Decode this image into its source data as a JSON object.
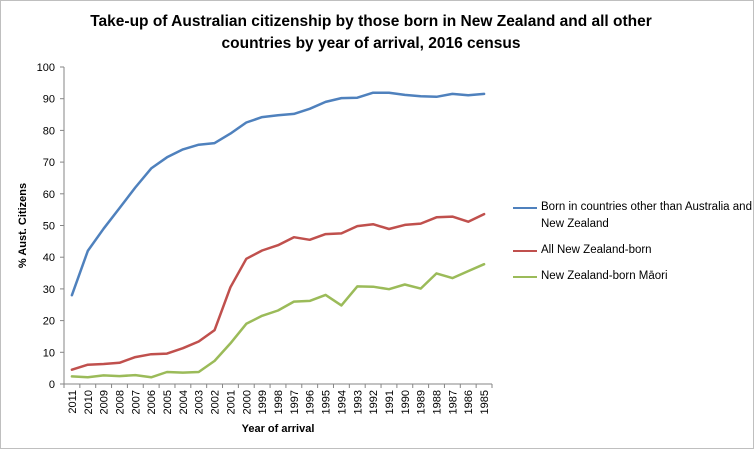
{
  "chart_data": {
    "type": "line",
    "title_lines": [
      "Take-up of Australian citizenship by those born in New Zealand and all other",
      "countries by year of arrival, 2016 census"
    ],
    "xlabel": "Year of arrival",
    "ylabel": "% Aust. Citizens",
    "ylim": [
      0,
      100
    ],
    "yticks": [
      "0",
      "10",
      "20",
      "30",
      "40",
      "50",
      "60",
      "70",
      "80",
      "90",
      "100"
    ],
    "categories": [
      "2011",
      "2010",
      "2009",
      "2008",
      "2007",
      "2006",
      "2005",
      "2004",
      "2003",
      "2002",
      "2001",
      "2000",
      "1999",
      "1998",
      "1997",
      "1996",
      "1995",
      "1994",
      "1993",
      "1992",
      "1991",
      "1990",
      "1989",
      "1988",
      "1987",
      "1986",
      "1985"
    ],
    "grid": false,
    "legend_position": "right",
    "series": [
      {
        "name": "Born in countries other than Australia and New Zealand",
        "color": "#4f81bd",
        "values": [
          28,
          42,
          49,
          55.5,
          62,
          68,
          71.5,
          74,
          75.5,
          76,
          79,
          82.5,
          84.2,
          84.8,
          85.2,
          86.8,
          89,
          90.2,
          90.3,
          91.9,
          91.9,
          91.2,
          90.8,
          90.6,
          91.5,
          91.1,
          91.5
        ]
      },
      {
        "name": "All New Zealand-born",
        "color": "#c0504d",
        "values": [
          4.5,
          6.1,
          6.3,
          6.7,
          8.5,
          9.4,
          9.6,
          11.3,
          13.4,
          17,
          30.5,
          39.5,
          42.1,
          43.8,
          46.3,
          45.5,
          47.3,
          47.5,
          49.8,
          50.4,
          48.9,
          50.2,
          50.6,
          52.6,
          52.8,
          51.2,
          53.6
        ]
      },
      {
        "name": "New Zealand-born Māori",
        "color": "#9bbb59",
        "values": [
          2.4,
          2.1,
          2.7,
          2.5,
          2.8,
          2.1,
          3.8,
          3.6,
          3.8,
          7.3,
          12.8,
          19,
          21.5,
          23.2,
          26,
          26.2,
          28.1,
          24.8,
          30.8,
          30.7,
          29.9,
          31.4,
          30.1,
          34.9,
          33.4,
          35.6,
          37.8
        ]
      }
    ]
  }
}
